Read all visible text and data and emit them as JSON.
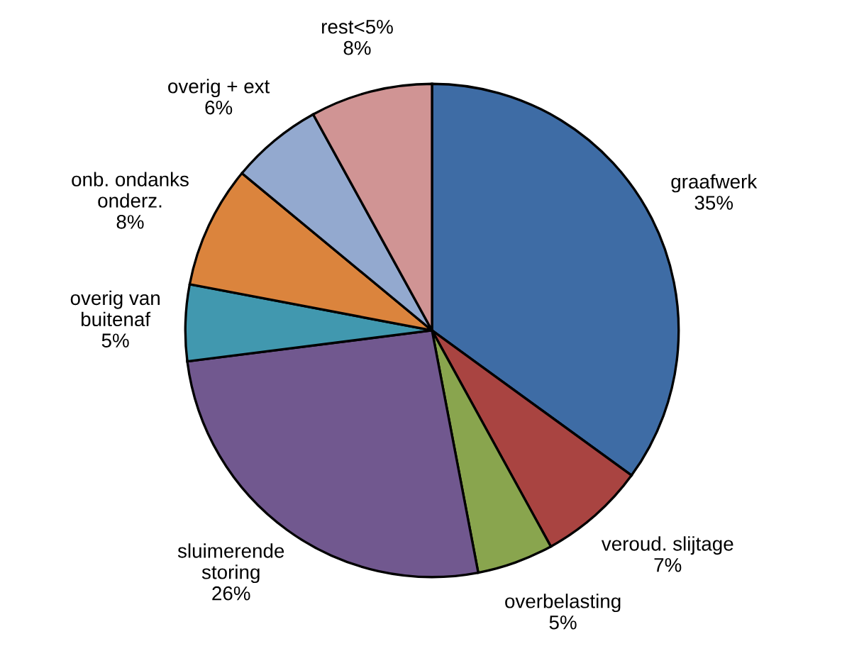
{
  "chart_data": {
    "type": "pie",
    "categories": [
      "graafwerk",
      "veroud. slijtage",
      "overbelasting",
      "sluimerende\nstoring",
      "overig van\nbuitenaf",
      "onb. ondanks\nonderz.",
      "overig + ext",
      "rest<5%"
    ],
    "values": [
      35,
      7,
      5,
      26,
      5,
      8,
      6,
      8
    ],
    "value_labels": [
      "35%",
      "7%",
      "5%",
      "26%",
      "5%",
      "8%",
      "6%",
      "8%"
    ],
    "colors": [
      "#3e6ca5",
      "#a94441",
      "#89a54e",
      "#71588f",
      "#4198af",
      "#db843d",
      "#93a9cf",
      "#d09494"
    ]
  }
}
